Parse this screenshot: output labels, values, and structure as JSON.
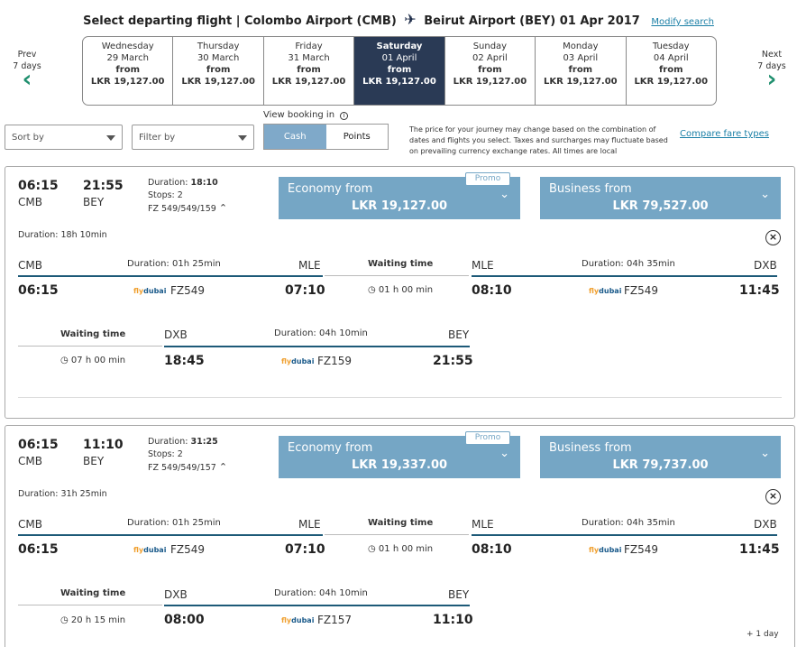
{
  "header": {
    "title": "Select departing flight | Colombo Airport (CMB)",
    "dest": "Beirut Airport (BEY) 01 Apr 2017",
    "modify": "Modify search"
  },
  "nav": {
    "prev_l1": "Prev",
    "prev_l2": "7 days",
    "next_l1": "Next",
    "next_l2": "7 days"
  },
  "dates": [
    {
      "day": "Wednesday",
      "date": "29 March",
      "from": "from",
      "price": "LKR 19,127.00"
    },
    {
      "day": "Thursday",
      "date": "30 March",
      "from": "from",
      "price": "LKR 19,127.00"
    },
    {
      "day": "Friday",
      "date": "31 March",
      "from": "from",
      "price": "LKR 19,127.00"
    },
    {
      "day": "Saturday",
      "date": "01 April",
      "from": "from",
      "price": "LKR 19,127.00"
    },
    {
      "day": "Sunday",
      "date": "02 April",
      "from": "from",
      "price": "LKR 19,127.00"
    },
    {
      "day": "Monday",
      "date": "03 April",
      "from": "from",
      "price": "LKR 19,127.00"
    },
    {
      "day": "Tuesday",
      "date": "04 April",
      "from": "from",
      "price": "LKR 19,127.00"
    }
  ],
  "controls": {
    "sort": "Sort by",
    "filter": "Filter by",
    "view_label": "View booking in",
    "cash": "Cash",
    "points": "Points",
    "note": "The price for your journey may change based on the combination of dates and flights you select. Taxes and surcharges may fluctuate based on prevailing currency exchange rates. All times are local",
    "compare": "Compare fare types"
  },
  "flights": [
    {
      "dep_time": "06:15",
      "dep_code": "CMB",
      "arr_time": "21:55",
      "arr_code": "BEY",
      "duration_lbl": "Duration:",
      "duration": "18:10",
      "stops_lbl": "Stops:",
      "stops": "2",
      "flight_nos": "FZ 549/549/159",
      "promo": "Promo",
      "economy_lbl": "Economy from",
      "economy_price": "LKR 19,127.00",
      "business_lbl": "Business from",
      "business_price": "LKR 79,527.00",
      "total_duration": "Duration: 18h 10min",
      "legs": [
        {
          "from": "CMB",
          "to": "MLE",
          "dur": "Duration: 01h 25min",
          "dep": "06:15",
          "arr": "07:10",
          "flight": "FZ549"
        },
        {
          "from": "MLE",
          "to": "DXB",
          "dur": "Duration: 04h 35min",
          "dep": "08:10",
          "arr": "11:45",
          "flight": "FZ549"
        },
        {
          "from": "DXB",
          "to": "BEY",
          "dur": "Duration: 04h 10min",
          "dep": "18:45",
          "arr": "21:55",
          "flight": "FZ159"
        }
      ],
      "waits": [
        {
          "label": "Waiting time",
          "time": "01 h 00 min"
        },
        {
          "label": "Waiting time",
          "time": "07 h 00 min"
        }
      ]
    },
    {
      "dep_time": "06:15",
      "dep_code": "CMB",
      "arr_time": "11:10",
      "arr_code": "BEY",
      "duration_lbl": "Duration:",
      "duration": "31:25",
      "stops_lbl": "Stops:",
      "stops": "2",
      "flight_nos": "FZ 549/549/157",
      "promo": "Promo",
      "economy_lbl": "Economy from",
      "economy_price": "LKR 19,337.00",
      "business_lbl": "Business from",
      "business_price": "LKR 79,737.00",
      "total_duration": "Duration: 31h 25min",
      "legs": [
        {
          "from": "CMB",
          "to": "MLE",
          "dur": "Duration: 01h 25min",
          "dep": "06:15",
          "arr": "07:10",
          "flight": "FZ549"
        },
        {
          "from": "MLE",
          "to": "DXB",
          "dur": "Duration: 04h 35min",
          "dep": "08:10",
          "arr": "11:45",
          "flight": "FZ549"
        },
        {
          "from": "DXB",
          "to": "BEY",
          "dur": "Duration: 04h 10min",
          "dep": "08:00",
          "arr": "11:10",
          "flight": "FZ157"
        }
      ],
      "waits": [
        {
          "label": "Waiting time",
          "time": "01 h 00 min"
        },
        {
          "label": "Waiting time",
          "time": "20 h 15 min"
        }
      ],
      "plus_day": "+ 1 day"
    }
  ],
  "airline_logo": {
    "fly": "fly",
    "dubai": "dubai"
  }
}
